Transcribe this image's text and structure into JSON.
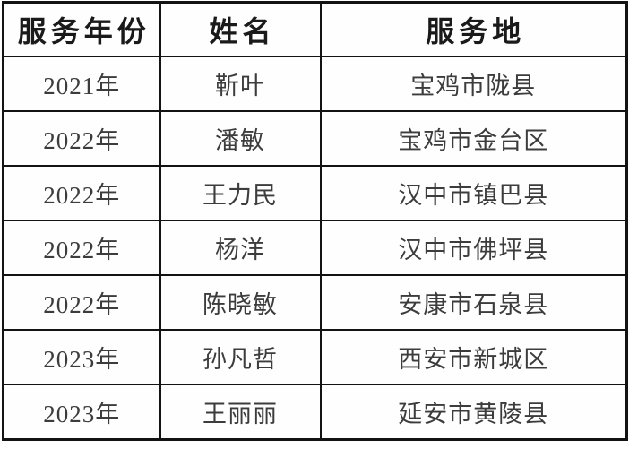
{
  "colors": {
    "border": "#131313",
    "background": "#fefefe",
    "headerText": "#1a1a1a",
    "bodyText": "#3c3c3c"
  },
  "table": {
    "columns": [
      {
        "key": "year",
        "label": "服务年份"
      },
      {
        "key": "name",
        "label": "姓名"
      },
      {
        "key": "location",
        "label": "服务地"
      }
    ],
    "rows": [
      {
        "year": "2021年",
        "name": "靳叶",
        "location": "宝鸡市陇县"
      },
      {
        "year": "2022年",
        "name": "潘敏",
        "location": "宝鸡市金台区"
      },
      {
        "year": "2022年",
        "name": "王力民",
        "location": "汉中市镇巴县"
      },
      {
        "year": "2022年",
        "name": "杨洋",
        "location": "汉中市佛坪县"
      },
      {
        "year": "2022年",
        "name": "陈晓敏",
        "location": "安康市石泉县"
      },
      {
        "year": "2023年",
        "name": "孙凡哲",
        "location": "西安市新城区"
      },
      {
        "year": "2023年",
        "name": "王丽丽",
        "location": "延安市黄陵县"
      }
    ]
  }
}
